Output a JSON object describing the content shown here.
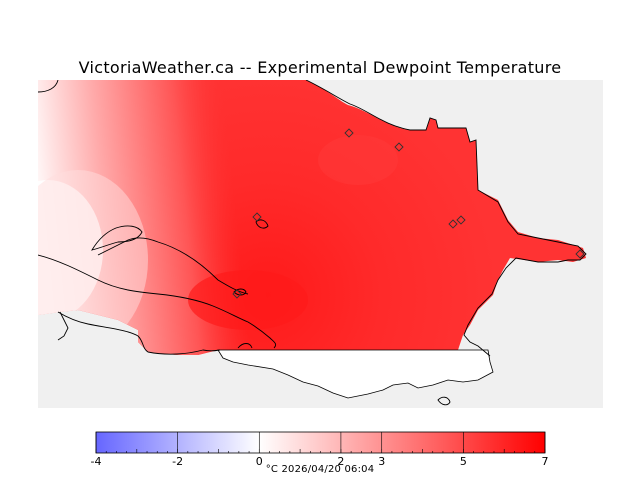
{
  "title": "VictoriaWeather.ca -- Experimental Dewpoint Temperature",
  "colors": {
    "land_background": "#f0f0f0",
    "cold": "#6666ff",
    "neutral": "#ffffff",
    "warm": "#ff0000",
    "coastline": "#000000"
  },
  "colorbar": {
    "min": -4,
    "max": 7,
    "tick_labels": [
      "-4",
      "-2",
      "0",
      "2",
      "3",
      "5",
      "7"
    ],
    "tick_values": [
      -4,
      -2,
      0,
      2,
      3,
      5,
      7
    ]
  },
  "footer": "°C   2026/04/20 06:04",
  "stations_count_shown": 7
}
